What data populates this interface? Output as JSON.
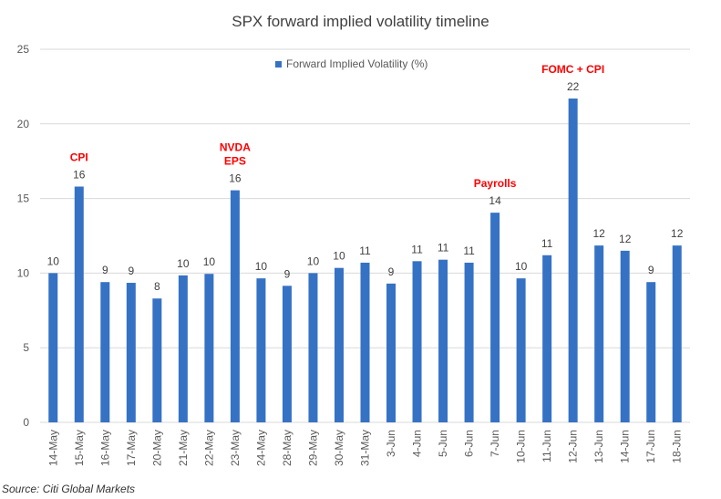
{
  "chart_data": {
    "type": "bar",
    "title": "SPX forward implied volatility timeline",
    "xlabel": "",
    "ylabel": "",
    "ylim": [
      0,
      25
    ],
    "yticks": [
      0,
      5,
      10,
      15,
      20,
      25
    ],
    "grid": true,
    "legend_position": "top-center",
    "categories": [
      "14-May",
      "15-May",
      "16-May",
      "17-May",
      "20-May",
      "21-May",
      "22-May",
      "23-May",
      "24-May",
      "28-May",
      "29-May",
      "30-May",
      "31-May",
      "3-Jun",
      "4-Jun",
      "5-Jun",
      "6-Jun",
      "7-Jun",
      "10-Jun",
      "11-Jun",
      "12-Jun",
      "13-Jun",
      "14-Jun",
      "17-Jun",
      "18-Jun"
    ],
    "series": [
      {
        "name": "Forward Implied Volatility (%)",
        "color": "#3672C4",
        "values": [
          10,
          15.8,
          9.4,
          9.35,
          8.3,
          9.85,
          9.95,
          15.55,
          9.65,
          9.15,
          10.0,
          10.35,
          10.7,
          9.3,
          10.8,
          10.9,
          10.7,
          14.05,
          9.65,
          11.2,
          21.7,
          11.85,
          11.5,
          9.4,
          11.85
        ],
        "labels": [
          "10",
          "16",
          "9",
          "9",
          "8",
          "10",
          "10",
          "16",
          "10",
          "9",
          "10",
          "10",
          "11",
          "9",
          "11",
          "11",
          "11",
          "14",
          "10",
          "11",
          "22",
          "12",
          "12",
          "9",
          "12"
        ]
      }
    ],
    "annotations": [
      {
        "category": "15-May",
        "lines": [
          "CPI"
        ],
        "color": "#FF0000"
      },
      {
        "category": "23-May",
        "lines": [
          "NVDA",
          "EPS"
        ],
        "color": "#FF0000"
      },
      {
        "category": "7-Jun",
        "lines": [
          "Payrolls"
        ],
        "color": "#FF0000"
      },
      {
        "category": "12-Jun",
        "lines": [
          "FOMC + CPI"
        ],
        "color": "#FF0000"
      }
    ]
  },
  "source_text": "Source: Citi Global Markets",
  "colors": {
    "bar": "#3672C4",
    "annotation": "#FF0000",
    "grid": "#D9D9D9",
    "axis_text": "#595959"
  }
}
